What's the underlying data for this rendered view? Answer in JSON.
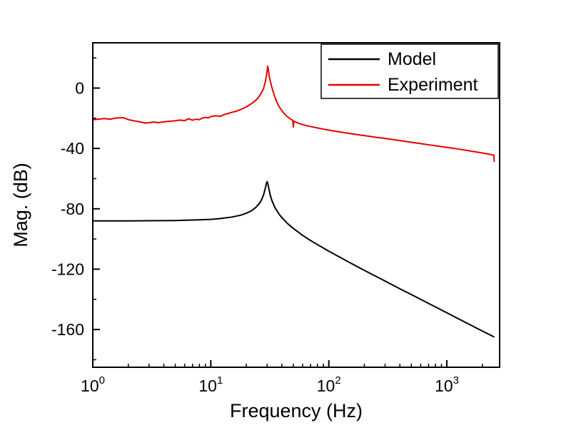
{
  "page": {
    "background": "#ffffff"
  },
  "chart_data": {
    "type": "line",
    "title": "",
    "xlabel": "Frequency (Hz)",
    "ylabel": "Mag. (dB)",
    "x_scale": "log",
    "xlim": [
      1,
      2800
    ],
    "ylim": [
      -185,
      30
    ],
    "x_major_tick_exponents": [
      0,
      1,
      2,
      3
    ],
    "y_major_ticks": [
      0,
      -40,
      -80,
      -120,
      -160
    ],
    "y_minor_ticks": [
      20,
      -20,
      -60,
      -100,
      -140,
      -180
    ],
    "grid": false,
    "legend_position": "top-right",
    "axis_color": "#000000",
    "series": [
      {
        "name": "Model",
        "color": "#000000",
        "points": [
          [
            1,
            -88
          ],
          [
            1.5,
            -88
          ],
          [
            2,
            -88
          ],
          [
            3,
            -87.9
          ],
          [
            4,
            -87.85
          ],
          [
            5,
            -87.75
          ],
          [
            6,
            -87.6
          ],
          [
            7,
            -87.45
          ],
          [
            8,
            -87.3
          ],
          [
            9,
            -87.1
          ],
          [
            10,
            -87
          ],
          [
            12,
            -86.5
          ],
          [
            15,
            -85.5
          ],
          [
            18,
            -84.2
          ],
          [
            20,
            -82.9
          ],
          [
            22,
            -81.4
          ],
          [
            24,
            -79.2
          ],
          [
            26,
            -76.1
          ],
          [
            27,
            -73.8
          ],
          [
            28,
            -70.7
          ],
          [
            29,
            -66.2
          ],
          [
            29.5,
            -63.5
          ],
          [
            30,
            -62
          ],
          [
            30.5,
            -63.7
          ],
          [
            31,
            -66.6
          ],
          [
            32,
            -71.4
          ],
          [
            33,
            -74.7
          ],
          [
            35,
            -79.3
          ],
          [
            38,
            -83.7
          ],
          [
            40,
            -85.8
          ],
          [
            45,
            -90
          ],
          [
            50,
            -93
          ],
          [
            60,
            -97.6
          ],
          [
            70,
            -101
          ],
          [
            80,
            -103.7
          ],
          [
            100,
            -108.1
          ],
          [
            150,
            -115.6
          ],
          [
            200,
            -120.8
          ],
          [
            300,
            -127.9
          ],
          [
            400,
            -133
          ],
          [
            500,
            -136.8
          ],
          [
            700,
            -142.7
          ],
          [
            1000,
            -148.9
          ],
          [
            1500,
            -156
          ],
          [
            2000,
            -161
          ],
          [
            2500,
            -164.8
          ]
        ]
      },
      {
        "name": "Experiment",
        "color": "#e60000",
        "points": [
          [
            1,
            -21
          ],
          [
            1.1,
            -20.7
          ],
          [
            1.25,
            -20.2
          ],
          [
            1.4,
            -20.6
          ],
          [
            1.6,
            -19.8
          ],
          [
            1.8,
            -19.6
          ],
          [
            2,
            -20.9
          ],
          [
            2.2,
            -21.6
          ],
          [
            2.5,
            -22.4
          ],
          [
            2.8,
            -23.2
          ],
          [
            3,
            -22.9
          ],
          [
            3.3,
            -22.5
          ],
          [
            3.6,
            -22.9
          ],
          [
            4,
            -22.4
          ],
          [
            4.5,
            -22
          ],
          [
            5,
            -21.7
          ],
          [
            5.5,
            -21.2
          ],
          [
            6,
            -21.6
          ],
          [
            6.5,
            -20.3
          ],
          [
            7,
            -21.3
          ],
          [
            7.5,
            -20.6
          ],
          [
            8,
            -20.9
          ],
          [
            8.5,
            -19.9
          ],
          [
            9,
            -19.4
          ],
          [
            9.5,
            -19.8
          ],
          [
            10,
            -18.9
          ],
          [
            11,
            -18.3
          ],
          [
            12,
            -18.8
          ],
          [
            13,
            -17.5
          ],
          [
            14,
            -16.9
          ],
          [
            15,
            -16.1
          ],
          [
            16,
            -15.6
          ],
          [
            17,
            -14.9
          ],
          [
            18,
            -14.1
          ],
          [
            19,
            -13.3
          ],
          [
            20,
            -12.4
          ],
          [
            21,
            -11.4
          ],
          [
            22,
            -10.4
          ],
          [
            23,
            -9.3
          ],
          [
            24,
            -8.1
          ],
          [
            25,
            -6.7
          ],
          [
            26,
            -4.9
          ],
          [
            27,
            -2.7
          ],
          [
            28,
            -0.2
          ],
          [
            29,
            4.2
          ],
          [
            29.5,
            7.5
          ],
          [
            30,
            11.5
          ],
          [
            30.3,
            14.5
          ],
          [
            30.8,
            12
          ],
          [
            31.2,
            8
          ],
          [
            32,
            4.2
          ],
          [
            33,
            0.2
          ],
          [
            34,
            -3.2
          ],
          [
            35,
            -6.2
          ],
          [
            36,
            -8.8
          ],
          [
            38,
            -12.5
          ],
          [
            40,
            -15
          ],
          [
            42,
            -17
          ],
          [
            44,
            -18.6
          ],
          [
            46,
            -19.8
          ],
          [
            48,
            -20.8
          ],
          [
            49.5,
            -21.4
          ],
          [
            50,
            -25.8
          ],
          [
            50.6,
            -21.9
          ],
          [
            53,
            -22.7
          ],
          [
            56,
            -23.4
          ],
          [
            60,
            -24.2
          ],
          [
            65,
            -24.9
          ],
          [
            70,
            -25.5
          ],
          [
            80,
            -26.4
          ],
          [
            90,
            -27.2
          ],
          [
            100,
            -27.9
          ],
          [
            120,
            -28.9
          ],
          [
            140,
            -29.7
          ],
          [
            170,
            -30.7
          ],
          [
            200,
            -31.5
          ],
          [
            250,
            -32.6
          ],
          [
            300,
            -33.4
          ],
          [
            400,
            -34.8
          ],
          [
            500,
            -35.9
          ],
          [
            600,
            -36.8
          ],
          [
            700,
            -37.6
          ],
          [
            800,
            -38.2
          ],
          [
            1000,
            -39.3
          ],
          [
            1200,
            -40.2
          ],
          [
            1500,
            -41.4
          ],
          [
            1800,
            -42.4
          ],
          [
            2000,
            -43
          ],
          [
            2200,
            -43.6
          ],
          [
            2400,
            -44.2
          ],
          [
            2500,
            -44.5
          ],
          [
            2520,
            -48.5
          ]
        ]
      }
    ]
  },
  "legend": {
    "items": [
      {
        "label": "Model"
      },
      {
        "label": "Experiment"
      }
    ]
  }
}
